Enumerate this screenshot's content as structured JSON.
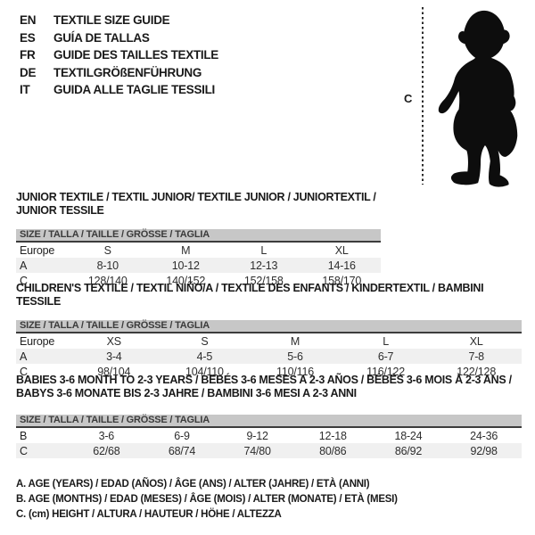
{
  "header": {
    "languages": [
      {
        "code": "EN",
        "label": "TEXTILE SIZE GUIDE"
      },
      {
        "code": "ES",
        "label": "GUÍA DE TALLAS"
      },
      {
        "code": "FR",
        "label": "GUIDE DES TAILLES TEXTILE"
      },
      {
        "code": "DE",
        "label": "TEXTILGRÖßENFÜHRUNG"
      },
      {
        "code": "IT",
        "label": "GUIDA ALLE TAGLIE TESSILI"
      }
    ]
  },
  "figure": {
    "image": "toddler-silhouette",
    "height_marker_label": "C"
  },
  "sections": [
    {
      "title": "JUNIOR TEXTILE / TEXTIL JUNIOR/ TEXTILE JUNIOR / JUNIORTEXTIL / JUNIOR TESSILE",
      "size_header": "SIZE / TALLA / TAILLE / GRÖSSE / TAGLIA",
      "rows": [
        [
          "Europe",
          "S",
          "M",
          "L",
          "XL"
        ],
        [
          "A",
          "8-10",
          "10-12",
          "12-13",
          "14-16"
        ],
        [
          "C",
          "128/140",
          "140/152",
          "152/158",
          "158/170"
        ]
      ]
    },
    {
      "title": "CHILDREN'S TEXTILE / TEXTIL NIÑO/A / TEXTILE DES ENFANTS / KINDERTEXTIL / BAMBINI TESSILE",
      "size_header": "SIZE / TALLA / TAILLE / GRÖSSE / TAGLIA",
      "rows": [
        [
          "Europe",
          "XS",
          "S",
          "M",
          "L",
          "XL"
        ],
        [
          "A",
          "3-4",
          "4-5",
          "5-6",
          "6-7",
          "7-8"
        ],
        [
          "C",
          "98/104",
          "104/110",
          "110/116",
          "116/122",
          "122/128"
        ]
      ]
    },
    {
      "title": [
        "BABIES 3-6 MONTH TO 2-3 YEARS / BEBÉS 3-6 MESES A 2-3 AÑOS / BÉBÉS 3-6 MOIS À 2-3 ANS /",
        "BABYS 3-6 MONATE BIS 2-3 JAHRE / BAMBINI 3-6 MESI A 2-3 ANNI"
      ],
      "size_header": "SIZE / TALLA / TAILLE / GRÖSSE / TAGLIA",
      "rows": [
        [
          "B",
          "3-6",
          "6-9",
          "9-12",
          "12-18",
          "18-24",
          "24-36"
        ],
        [
          "C",
          "62/68",
          "68/74",
          "74/80",
          "80/86",
          "86/92",
          "92/98"
        ]
      ]
    }
  ],
  "notes": [
    "A. AGE (YEARS) / EDAD (AÑOS) / ÂGE (ANS) / ALTER (JAHRE) / ETÀ (ANNI)",
    "B. AGE (MONTHS) / EDAD (MESES) / ÂGE (MOIS) / ALTER (MONATE) / ETÀ (MESI)",
    "C. (cm) HEIGHT / ALTURA / HAUTEUR / HÖHE / ALTEZZA"
  ],
  "colors": {
    "size_header_bar": "#c7c7c7",
    "alt_row": "#f0f0f0",
    "header_rule": "#3c3c3c",
    "text": "#1a1a1a",
    "silhouette": "#0d0d0d"
  }
}
